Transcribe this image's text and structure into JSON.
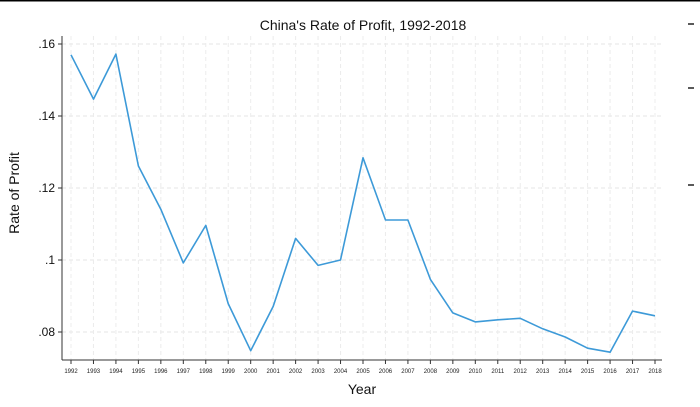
{
  "chart_data": {
    "type": "line",
    "title": "China's Rate of Profit, 1992-2018",
    "xlabel": "Year",
    "ylabel": "Rate of Profit",
    "x": [
      1992,
      1993,
      1994,
      1995,
      1996,
      1997,
      1998,
      1999,
      2000,
      2001,
      2002,
      2003,
      2004,
      2005,
      2006,
      2007,
      2008,
      2009,
      2010,
      2011,
      2012,
      2013,
      2014,
      2015,
      2016,
      2017,
      2018
    ],
    "series": [
      {
        "values": [
          0.157,
          0.1447,
          0.1572,
          0.1261,
          0.1141,
          0.0992,
          0.1096,
          0.0879,
          0.0748,
          0.0871,
          0.106,
          0.0985,
          0.1,
          0.1284,
          0.1111,
          0.1111,
          0.0946,
          0.0853,
          0.0828,
          0.0834,
          0.0838,
          0.0809,
          0.0786,
          0.0755,
          0.0744,
          0.0858,
          0.0845
        ],
        "color": "#3d9ad8"
      }
    ],
    "yticks": [
      0.08,
      0.1,
      0.12,
      0.14,
      0.16
    ],
    "ytick_labels": [
      ".08",
      ".1",
      ".12",
      ".14",
      ".16"
    ],
    "xtick_labels": [
      "1992",
      "1993",
      "1994",
      "1995",
      "1996",
      "1997",
      "1998",
      "1999",
      "2000",
      "2001",
      "2002",
      "2003",
      "2004",
      "2005",
      "2006",
      "2007",
      "2008",
      "2009",
      "2010",
      "2011",
      "2012",
      "2013",
      "2014",
      "2015",
      "2016",
      "2017",
      "2018"
    ],
    "ylim": [
      0.0721,
      0.162
    ],
    "xlim": [
      1991.6,
      2018.4
    ],
    "grid": true,
    "legend": "none"
  }
}
